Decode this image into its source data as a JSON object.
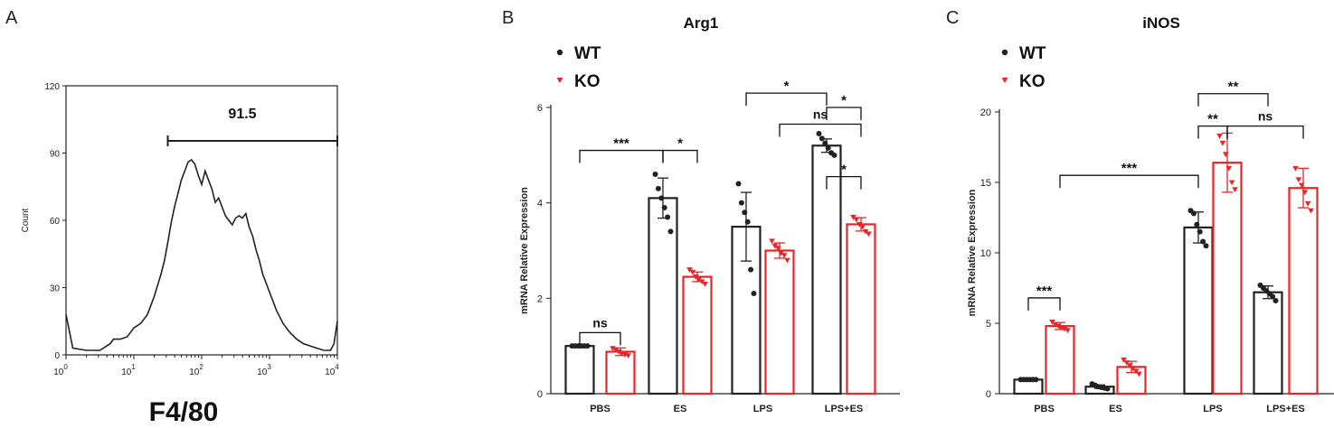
{
  "panels": {
    "a": "A",
    "b": "B",
    "c": "C"
  },
  "flow": {
    "type": "histogram",
    "ylabel": "Count",
    "yticks": [
      "0",
      "30",
      "60",
      "90",
      "120"
    ],
    "ytick_values": [
      0,
      30,
      60,
      90,
      120
    ],
    "xbase": "10",
    "xexps": [
      "0",
      "1",
      "2",
      "3",
      "4"
    ],
    "xlabel": "F4/80",
    "gate_label": "91.5",
    "gate_range": [
      1.5,
      4.0
    ],
    "curve": [
      [
        0,
        18
      ],
      [
        0.1,
        3
      ],
      [
        0.3,
        2
      ],
      [
        0.5,
        2
      ],
      [
        0.6,
        4
      ],
      [
        0.65,
        5
      ],
      [
        0.7,
        7
      ],
      [
        0.8,
        7
      ],
      [
        0.9,
        8
      ],
      [
        1.0,
        12
      ],
      [
        1.1,
        14
      ],
      [
        1.2,
        18
      ],
      [
        1.3,
        26
      ],
      [
        1.4,
        36
      ],
      [
        1.45,
        42
      ],
      [
        1.5,
        50
      ],
      [
        1.55,
        59
      ],
      [
        1.6,
        66
      ],
      [
        1.65,
        72
      ],
      [
        1.7,
        78
      ],
      [
        1.75,
        82
      ],
      [
        1.8,
        86
      ],
      [
        1.85,
        87
      ],
      [
        1.9,
        85
      ],
      [
        1.95,
        80
      ],
      [
        2.0,
        76
      ],
      [
        2.05,
        82
      ],
      [
        2.1,
        78
      ],
      [
        2.15,
        74
      ],
      [
        2.2,
        68
      ],
      [
        2.25,
        70
      ],
      [
        2.3,
        66
      ],
      [
        2.35,
        62
      ],
      [
        2.4,
        60
      ],
      [
        2.45,
        58
      ],
      [
        2.5,
        61
      ],
      [
        2.55,
        62
      ],
      [
        2.6,
        61
      ],
      [
        2.65,
        63
      ],
      [
        2.7,
        57
      ],
      [
        2.75,
        53
      ],
      [
        2.8,
        47
      ],
      [
        2.85,
        42
      ],
      [
        2.9,
        36
      ],
      [
        3.0,
        28
      ],
      [
        3.1,
        20
      ],
      [
        3.2,
        14
      ],
      [
        3.3,
        10
      ],
      [
        3.4,
        7
      ],
      [
        3.5,
        5
      ],
      [
        3.6,
        4
      ],
      [
        3.7,
        3
      ],
      [
        3.8,
        2
      ],
      [
        3.9,
        2
      ],
      [
        3.95,
        5
      ],
      [
        4.0,
        15
      ]
    ]
  },
  "chart_data": [
    {
      "type": "bar",
      "title": "Arg1",
      "ylabel": "mRNA Relative Expression",
      "ylim": [
        0,
        6
      ],
      "yticks": [
        "0",
        "2",
        "4",
        "6"
      ],
      "ytick_values": [
        0,
        2,
        4,
        6
      ],
      "categories": [
        "PBS",
        "ES",
        "LPS",
        "LPS+ES"
      ],
      "legend": [
        "WT",
        "KO"
      ],
      "series": [
        {
          "name": "WT",
          "values": [
            1.0,
            4.1,
            3.5,
            5.2
          ],
          "errors": [
            0.02,
            0.42,
            0.72,
            0.14
          ],
          "points": [
            [
              1.0,
              1.0,
              1.0,
              1.0,
              1.0,
              1.0
            ],
            [
              4.6,
              4.3,
              4.1,
              3.9,
              3.7,
              3.4
            ],
            [
              4.4,
              4.0,
              3.8,
              3.6,
              2.6,
              2.1
            ],
            [
              5.45,
              5.35,
              5.25,
              5.15,
              5.05,
              5.0
            ]
          ]
        },
        {
          "name": "KO",
          "values": [
            0.88,
            2.45,
            3.0,
            3.55
          ],
          "errors": [
            0.08,
            0.1,
            0.16,
            0.14
          ],
          "points": [
            [
              0.95,
              0.92,
              0.88,
              0.85,
              0.82,
              0.8
            ],
            [
              2.6,
              2.55,
              2.45,
              2.4,
              2.35,
              2.3
            ],
            [
              3.2,
              3.1,
              3.05,
              2.95,
              2.9,
              2.8
            ],
            [
              3.7,
              3.65,
              3.55,
              3.5,
              3.4,
              3.35
            ]
          ]
        }
      ],
      "annotations": [
        {
          "text": "ns",
          "x1": 0,
          "x2": 1,
          "height": 1.28
        },
        {
          "text": "***",
          "x1": 0,
          "x2": 2,
          "height": 5.1
        },
        {
          "text": "*",
          "x1": 2,
          "x2": 3,
          "height": 5.1
        },
        {
          "text": "*",
          "x1": 6,
          "x2": 7,
          "height": 4.55
        },
        {
          "text": "*",
          "x1": 4,
          "x2": 6,
          "height": 6.3
        },
        {
          "text": "ns",
          "x1": 5,
          "x2": 7,
          "height": 5.65
        },
        {
          "text": "*",
          "x1": 6,
          "x2": 7,
          "height": 6.0
        }
      ]
    },
    {
      "type": "bar",
      "title": "iNOS",
      "ylabel": "mRNA Relative Expression",
      "ylim": [
        0,
        20
      ],
      "yticks": [
        "0",
        "5",
        "10",
        "15",
        "20"
      ],
      "ytick_values": [
        0,
        5,
        10,
        15,
        20
      ],
      "categories": [
        "PBS",
        "ES",
        "LPS",
        "LPS+ES"
      ],
      "legend": [
        "WT",
        "KO"
      ],
      "series": [
        {
          "name": "WT",
          "values": [
            1.0,
            0.5,
            11.8,
            7.2
          ],
          "errors": [
            0.02,
            0.12,
            1.1,
            0.45
          ],
          "points": [
            [
              1.0,
              1.0,
              1.0,
              1.0,
              1.0,
              1.0
            ],
            [
              0.7,
              0.6,
              0.5,
              0.45,
              0.4,
              0.35
            ],
            [
              13.0,
              12.8,
              12.0,
              11.5,
              10.8,
              10.5
            ],
            [
              7.7,
              7.5,
              7.3,
              7.1,
              6.9,
              6.6
            ]
          ]
        },
        {
          "name": "KO",
          "values": [
            4.8,
            1.9,
            16.4,
            14.6
          ],
          "errors": [
            0.25,
            0.4,
            2.1,
            1.4
          ],
          "points": [
            [
              5.1,
              4.9,
              4.8,
              4.7,
              4.6,
              4.5
            ],
            [
              2.4,
              2.2,
              2.0,
              1.8,
              1.6,
              1.4
            ],
            [
              18.3,
              17.8,
              17.0,
              16.0,
              15.0,
              14.5
            ],
            [
              16.0,
              15.2,
              14.8,
              14.3,
              13.5,
              13.0
            ]
          ]
        }
      ],
      "annotations": [
        {
          "text": "***",
          "x1": 0,
          "x2": 1,
          "height": 6.8
        },
        {
          "text": "***",
          "x1": 1,
          "x2": 4,
          "height": 15.5
        },
        {
          "text": "**",
          "x1": 4,
          "x2": 5,
          "height": 19.0
        },
        {
          "text": "ns",
          "x1": 5,
          "x2": 7,
          "height": 19.0
        },
        {
          "text": "**",
          "x1": 4,
          "x2": 6,
          "height": 21.3
        }
      ]
    }
  ]
}
